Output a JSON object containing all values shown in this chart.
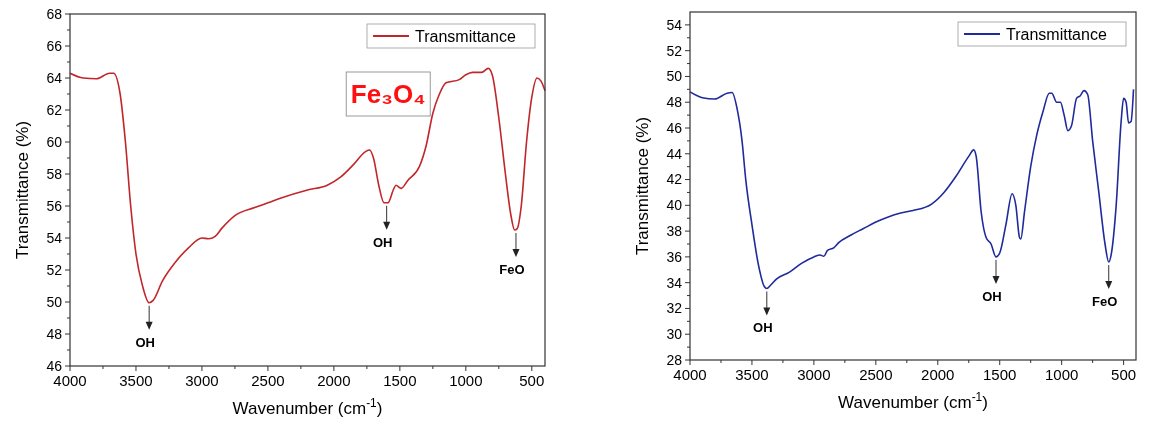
{
  "chart_data": [
    {
      "type": "line",
      "xlabel": "Wavenumber (cm$^{-1}$)",
      "ylabel": "Transmittance (%)",
      "xlim": [
        4000,
        400
      ],
      "ylim": [
        46,
        68
      ],
      "xticks": [
        4000,
        3500,
        3000,
        2500,
        2000,
        1500,
        1000,
        500
      ],
      "yticks": [
        46,
        48,
        50,
        52,
        54,
        56,
        58,
        60,
        62,
        64,
        66,
        68
      ],
      "legend": "top right",
      "grid": false,
      "annotations": [
        "Fe₃O₄",
        {
          "text": "OH",
          "x": 3400,
          "y": 49.95
        },
        {
          "text": "OH",
          "x": 1600,
          "y": 56.2
        },
        {
          "text": "FeO",
          "x": 620,
          "y": 54.5
        }
      ],
      "series": [
        {
          "name": "Transmittance",
          "color": "#c0262a",
          "x": [
            4000,
            3900,
            3800,
            3700,
            3670,
            3620,
            3580,
            3540,
            3500,
            3450,
            3400,
            3370,
            3300,
            3200,
            3100,
            3000,
            2950,
            2900,
            2850,
            2750,
            2600,
            2500,
            2400,
            2200,
            2050,
            1950,
            1850,
            1760,
            1730,
            1700,
            1660,
            1620,
            1590,
            1550,
            1530,
            1490,
            1440,
            1350,
            1300,
            1250,
            1200,
            1150,
            1050,
            1000,
            950,
            880,
            830,
            800,
            750,
            700,
            660,
            630,
            610,
            580,
            540,
            500,
            460,
            430,
            400
          ],
          "values": [
            64.3,
            64.0,
            63.95,
            64.3,
            64.3,
            63,
            60,
            56,
            53,
            51,
            49.95,
            50.1,
            51.3,
            52.5,
            53.4,
            54,
            53.95,
            54.1,
            54.6,
            55.4,
            55.9,
            56.2,
            56.5,
            57,
            57.3,
            57.8,
            58.6,
            59.4,
            59.5,
            59,
            57.3,
            56.2,
            56.2,
            57,
            57.3,
            57.1,
            57.6,
            58.5,
            59.8,
            61.8,
            63,
            63.7,
            63.9,
            64.2,
            64.35,
            64.35,
            64.6,
            64.2,
            61.5,
            58,
            55.5,
            54.5,
            54.6,
            56,
            60,
            62.8,
            64,
            63.8,
            63.2
          ]
        }
      ]
    },
    {
      "type": "line",
      "xlabel": "Wavenumber (cm$^{-1}$)",
      "ylabel": "Transmittance (%)",
      "xlim": [
        4000,
        400
      ],
      "ylim": [
        28,
        55
      ],
      "xticks": [
        4000,
        3500,
        3000,
        2500,
        2000,
        1500,
        1000,
        500
      ],
      "yticks": [
        28,
        30,
        32,
        34,
        36,
        38,
        40,
        42,
        44,
        46,
        48,
        50,
        52,
        54
      ],
      "legend": "top right",
      "grid": false,
      "annotations": [
        {
          "text": "OH",
          "x": 3380,
          "y": 33.55
        },
        {
          "text": "OH",
          "x": 1530,
          "y": 36.0
        },
        {
          "text": "FeO",
          "x": 620,
          "y": 35.6
        }
      ],
      "series": [
        {
          "name": "Transmittance",
          "color": "#1f2a9c",
          "x": [
            4000,
            3900,
            3800,
            3700,
            3660,
            3620,
            3580,
            3550,
            3500,
            3450,
            3400,
            3380,
            3350,
            3300,
            3200,
            3100,
            3000,
            2950,
            2920,
            2890,
            2840,
            2800,
            2700,
            2600,
            2500,
            2400,
            2300,
            2200,
            2050,
            1950,
            1850,
            1750,
            1710,
            1690,
            1650,
            1610,
            1570,
            1530,
            1500,
            1450,
            1400,
            1370,
            1340,
            1330,
            1300,
            1250,
            1200,
            1150,
            1100,
            1080,
            1040,
            1010,
            980,
            950,
            920,
            880,
            850,
            820,
            790,
            750,
            700,
            650,
            620,
            600,
            560,
            520,
            500,
            480,
            460,
            440,
            420
          ],
          "values": [
            48.8,
            48.35,
            48.25,
            48.7,
            48.75,
            47.5,
            45,
            42,
            38.5,
            35.5,
            33.7,
            33.55,
            33.8,
            34.3,
            34.8,
            35.5,
            36.0,
            36.15,
            36.05,
            36.5,
            36.7,
            37.1,
            37.7,
            38.2,
            38.7,
            39.1,
            39.4,
            39.6,
            40.1,
            41,
            42.3,
            43.8,
            44.3,
            43.8,
            39.5,
            37.5,
            37,
            36.0,
            36.3,
            38.5,
            40.9,
            40,
            37.5,
            37.4,
            39.5,
            43,
            45.5,
            47.3,
            48.7,
            48.7,
            48,
            48,
            47,
            45.8,
            46.2,
            48.3,
            48.5,
            48.9,
            48.6,
            45,
            41,
            37,
            35.6,
            36.2,
            40,
            46.5,
            48.3,
            48,
            46.4,
            46.5,
            49
          ]
        }
      ]
    }
  ]
}
